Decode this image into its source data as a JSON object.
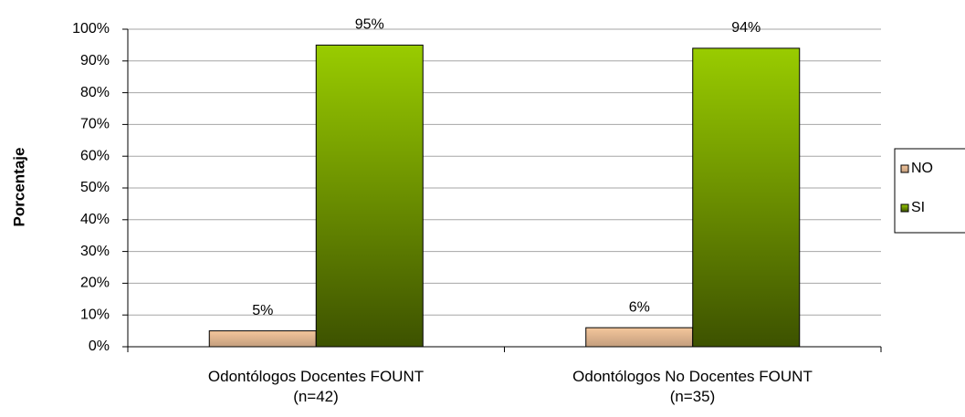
{
  "chart_data": {
    "type": "bar",
    "y_axis_label": "Porcentaje",
    "categories": [
      "Odontólogos  Docentes FOUNT\n(n=42)",
      "Odontólogos No Docentes FOUNT\n(n=35)"
    ],
    "series": [
      {
        "name": "NO",
        "color": "#f4c69c",
        "values": [
          5,
          6
        ],
        "value_labels": [
          "5%",
          "6%"
        ]
      },
      {
        "name": "SI",
        "color": "#99cc00",
        "values": [
          95,
          94
        ],
        "value_labels": [
          "95%",
          "94%"
        ]
      }
    ],
    "ylim": [
      0,
      100
    ],
    "yticks": [
      {
        "value": 0,
        "label": "0%"
      },
      {
        "value": 10,
        "label": "10%"
      },
      {
        "value": 20,
        "label": "20%"
      },
      {
        "value": 30,
        "label": "30%"
      },
      {
        "value": 40,
        "label": "40%"
      },
      {
        "value": 50,
        "label": "50%"
      },
      {
        "value": 60,
        "label": "60%"
      },
      {
        "value": 70,
        "label": "70%"
      },
      {
        "value": 80,
        "label": "80%"
      },
      {
        "value": 90,
        "label": "90%"
      },
      {
        "value": 100,
        "label": "100%"
      }
    ],
    "grid": true,
    "legend": "right"
  }
}
